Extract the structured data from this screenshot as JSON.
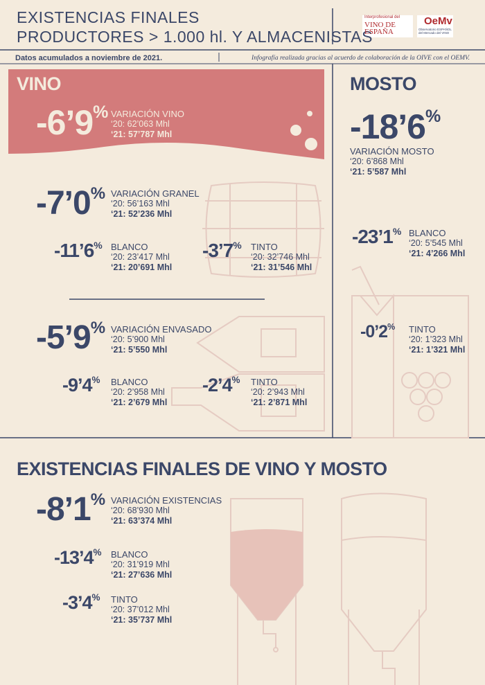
{
  "header": {
    "title_line1": "EXISTENCIAS FINALES",
    "title_line2": "PRODUCTORES > 1.000 hl. Y ALMACENISTAS",
    "logo1_top": "Interprofesional del",
    "logo1_main": "VINO DE ESPAÑA",
    "logo2_main": "OeMv",
    "logo2_sub": "Observatorio ESPAÑOL del Mercado del VINO"
  },
  "subheader": {
    "date": "Datos acumulados a noviembre de 2021.",
    "credit": "Infografía realizada gracias al acuerdo de colaboración de la OIVE con el OEMV."
  },
  "vino": {
    "heading": "VINO",
    "total": {
      "pct": "-6’9%",
      "label": "VARIACIÓN VINO",
      "prev": "‘20: 62’063 Mhl",
      "curr": "‘21: 57’787 Mhl"
    },
    "granel": {
      "pct": "-7’0%",
      "label": "VARIACIÓN GRANEL",
      "prev": "‘20: 56’163 Mhl",
      "curr": "‘21: 52’236 Mhl"
    },
    "granel_blanco": {
      "pct": "-11’6%",
      "label": "BLANCO",
      "prev": "‘20: 23’417 Mhl",
      "curr": "‘21: 20’691 Mhl"
    },
    "granel_tinto": {
      "pct": "-3’7%",
      "label": "TINTO",
      "prev": "‘20: 32’746 Mhl",
      "curr": "‘21: 31’546 Mhl"
    },
    "envasado": {
      "pct": "-5’9%",
      "label": "VARIACIÓN ENVASADO",
      "prev": "‘20: 5’900 Mhl",
      "curr": "‘21: 5’550 Mhl"
    },
    "envasado_blanco": {
      "pct": "-9’4%",
      "label": "BLANCO",
      "prev": "‘20: 2’958 Mhl",
      "curr": "‘21: 2’679 Mhl"
    },
    "envasado_tinto": {
      "pct": "-2’4%",
      "label": "TINTO",
      "prev": "‘20: 2’943 Mhl",
      "curr": "‘21: 2’871 Mhl"
    }
  },
  "mosto": {
    "heading": "MOSTO",
    "total": {
      "pct": "-18’6%",
      "label": "VARIACIÓN MOSTO",
      "prev": "‘20: 6’868 Mhl",
      "curr": "‘21: 5’587 Mhl"
    },
    "blanco": {
      "pct": "-23’1%",
      "label": "BLANCO",
      "prev": "‘20: 5’545 Mhl",
      "curr": "‘21: 4’266 Mhl"
    },
    "tinto": {
      "pct": "-0’2%",
      "label": "TINTO",
      "prev": "‘20: 1’323 Mhl",
      "curr": "‘21: 1’321 Mhl"
    }
  },
  "existencias": {
    "heading": "EXISTENCIAS FINALES DE VINO Y MOSTO",
    "total": {
      "pct": "-8’1%",
      "label": "VARIACIÓN EXISTENCIAS",
      "prev": "‘20: 68’930 Mhl",
      "curr": "‘21: 63’374 Mhl"
    },
    "blanco": {
      "pct": "-13’4%",
      "label": "BLANCO",
      "prev": "‘20: 31’919 Mhl",
      "curr": "‘21: 27’636 Mhl"
    },
    "tinto": {
      "pct": "-3’4%",
      "label": "TINTO",
      "prev": "‘20: 37’012 Mhl",
      "curr": "‘21: 35’737 Mhl"
    }
  }
}
